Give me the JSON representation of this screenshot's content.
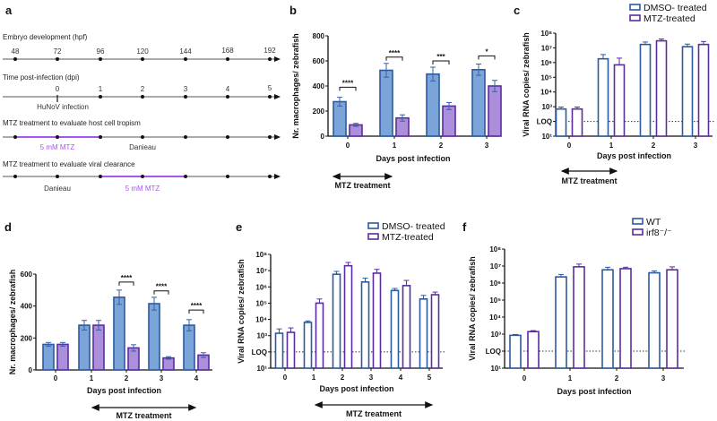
{
  "panel_labels": [
    "a",
    "b",
    "c",
    "d",
    "e",
    "f"
  ],
  "timeline": {
    "rows": [
      {
        "title": "Embryo development (hpf)",
        "ticks": [
          "48",
          "72",
          "96",
          "120",
          "144",
          "168",
          "192"
        ]
      },
      {
        "title": "Time post-infection (dpi)",
        "ticks": [
          "0",
          "1",
          "2",
          "3",
          "4",
          "5"
        ],
        "annotation": "HuNoV infection"
      },
      {
        "title": "MTZ treatment to evaluate host cell tropism",
        "segments": [
          {
            "label": "5 mM MTZ",
            "color": "#a855f7"
          },
          {
            "label": "Danieau",
            "color": "#333333"
          }
        ]
      },
      {
        "title": "MTZ treatment to evaluate viral clearance",
        "segments": [
          {
            "label": "Danieau",
            "color": "#333333"
          },
          {
            "label": "5 mM MTZ",
            "color": "#a855f7"
          }
        ]
      }
    ]
  },
  "colors": {
    "dmso_fill": "#7ba4d9",
    "dmso_stroke": "#2c5aa0",
    "mtz_fill": "#ab8fdb",
    "mtz_stroke": "#5b2d9e"
  },
  "chart_data": [
    {
      "panel": "b",
      "type": "bar",
      "scale": "linear",
      "categories": [
        "0",
        "1",
        "2",
        "3"
      ],
      "xlabel": "Days post infection",
      "ylabel": "Nr. macrophages/ zebrafish",
      "ylim": [
        0,
        800
      ],
      "yticks": [
        "0",
        "200",
        "400",
        "600",
        "800"
      ],
      "series": [
        {
          "values": [
            275,
            525,
            495,
            530
          ],
          "errors": [
            35,
            55,
            55,
            45
          ]
        },
        {
          "values": [
            90,
            145,
            240,
            400
          ],
          "errors": [
            12,
            25,
            28,
            45
          ]
        }
      ],
      "significance": [
        {
          "category": "0",
          "label": "****",
          "at": 390
        },
        {
          "category": "1",
          "label": "****",
          "at": 630
        },
        {
          "category": "2",
          "label": "***",
          "at": 600
        },
        {
          "category": "3",
          "label": "*",
          "at": 640
        }
      ],
      "treatment": "MTZ treatment"
    },
    {
      "panel": "c",
      "type": "bar",
      "scale": "log",
      "categories": [
        "0",
        "1",
        "2",
        "3"
      ],
      "xlabel": "Days post infection",
      "ylabel": "Viral  RNA copies/ zebrafish",
      "ylim": [
        10,
        100000000
      ],
      "yticks": [
        "10¹",
        "LOQ",
        "10³",
        "10⁴",
        "10⁵",
        "10⁶",
        "10⁷",
        "10⁸"
      ],
      "loq": 100,
      "legend": [
        "DMSO- treated",
        "MTZ-treated"
      ],
      "legend_position": "top-right",
      "series": [
        {
          "name": "DMSO- treated",
          "values": [
            700,
            1800000,
            17000000,
            12000000
          ],
          "error_upper": [
            950,
            3500000,
            25000000,
            18000000
          ]
        },
        {
          "name": "MTZ-treated",
          "values": [
            700,
            700000,
            30000000,
            17000000
          ],
          "error_upper": [
            950,
            2000000,
            40000000,
            27000000
          ]
        }
      ],
      "treatment": "MTZ treatment"
    },
    {
      "panel": "d",
      "type": "bar",
      "scale": "linear",
      "categories": [
        "0",
        "1",
        "2",
        "3",
        "4"
      ],
      "xlabel": "Days post infection",
      "ylabel": "Nr. macrophages/ zebrafish",
      "ylim": [
        0,
        600
      ],
      "yticks": [
        "0",
        "200",
        "400",
        "600"
      ],
      "series": [
        {
          "values": [
            160,
            280,
            455,
            415,
            280
          ],
          "errors": [
            12,
            30,
            45,
            40,
            35
          ]
        },
        {
          "values": [
            160,
            280,
            138,
            75,
            93
          ],
          "errors": [
            12,
            30,
            20,
            8,
            15
          ]
        }
      ],
      "significance": [
        {
          "category": "2",
          "label": "****",
          "at": 550
        },
        {
          "category": "3",
          "label": "****",
          "at": 495
        },
        {
          "category": "4",
          "label": "****",
          "at": 375
        }
      ],
      "treatment": "MTZ treatment"
    },
    {
      "panel": "e",
      "type": "bar",
      "scale": "log",
      "categories": [
        "0",
        "1",
        "2",
        "3",
        "4",
        "5"
      ],
      "xlabel": "Days post infection",
      "ylabel": "Viral  RNA copies/ zebrafish",
      "ylim": [
        10,
        100000000
      ],
      "yticks": [
        "10¹",
        "LOQ",
        "10³",
        "10⁴",
        "10⁵",
        "10⁶",
        "10⁷",
        "10⁸"
      ],
      "loq": 100,
      "legend": [
        "DMSO- treated",
        "MTZ-treated"
      ],
      "legend_position": "top-right",
      "series": [
        {
          "name": "DMSO- treated",
          "values": [
            1400,
            6500,
            6000000,
            2000000,
            600000,
            180000
          ],
          "error_upper": [
            2600,
            8000,
            9000000,
            3500000,
            800000,
            300000
          ]
        },
        {
          "name": "MTZ-treated",
          "values": [
            1600,
            100000,
            20000000,
            7000000,
            1200000,
            330000
          ],
          "error_upper": [
            3000,
            180000,
            32000000,
            12000000,
            2500000,
            480000
          ]
        }
      ],
      "treatment": "MTZ treatment"
    },
    {
      "panel": "f",
      "type": "bar",
      "scale": "log",
      "categories": [
        "0",
        "1",
        "2",
        "3"
      ],
      "xlabel": "Days post infection",
      "ylabel": "Viral  RNA copies/ zebrafish",
      "ylim": [
        10,
        100000000
      ],
      "yticks": [
        "10¹",
        "LOQ",
        "10³",
        "10⁴",
        "10⁵",
        "10⁶",
        "10⁷",
        "10⁸"
      ],
      "loq": 100,
      "legend": [
        "WT",
        "irf8⁻/⁻"
      ],
      "legend_position": "top-right",
      "series": [
        {
          "name": "WT",
          "values": [
            850,
            2300000,
            6000000,
            4000000
          ],
          "error_upper": [
            950,
            3200000,
            8500000,
            5200000
          ]
        },
        {
          "name": "irf8⁻/⁻",
          "values": [
            1400,
            9000000,
            7000000,
            6000000
          ],
          "error_upper": [
            1600,
            13000000,
            8500000,
            9000000
          ]
        }
      ]
    }
  ]
}
